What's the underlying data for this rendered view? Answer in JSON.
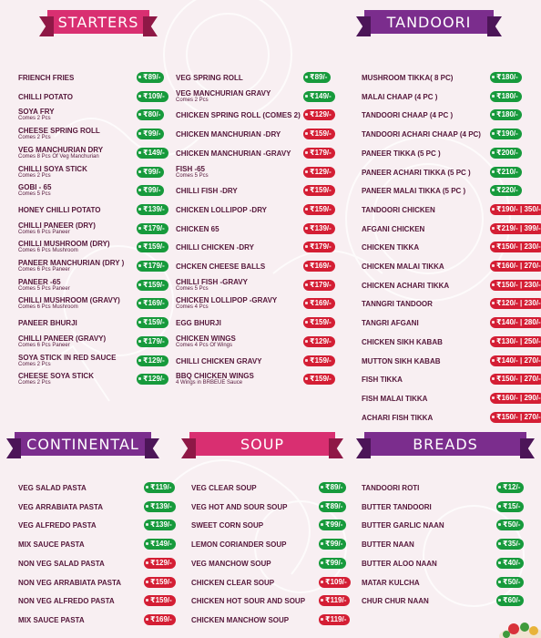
{
  "sections": {
    "starters": "STARTERS",
    "tandoori": "TANDOORI",
    "continental": "CONTINENTAL",
    "soup": "SOUP",
    "breads": "BREADS"
  },
  "colors": {
    "veg_badge": "#179a3c",
    "nonveg_badge": "#d41e34",
    "ribbon_pink": "#d92f71",
    "ribbon_purple": "#7b2d8d"
  },
  "starters_col1": [
    {
      "name": "FRIENCH FRIES",
      "price": "₹89/-",
      "type": "veg"
    },
    {
      "name": "CHILLI POTATO",
      "price": "₹109/-",
      "type": "veg"
    },
    {
      "name": "SOYA FRY",
      "sub": "Comes 2 Pcs",
      "price": "₹80/-",
      "type": "veg"
    },
    {
      "name": "CHEESE SPRING ROLL",
      "sub": "Comes 2 Pcs",
      "price": "₹99/-",
      "type": "veg"
    },
    {
      "name": "VEG MANCHURIAN DRY",
      "sub": "Comes 8 Pcs Of Veg Manchurian",
      "price": "₹149/-",
      "type": "veg"
    },
    {
      "name": "CHILLI SOYA STICK",
      "sub": "Comes 2 Pcs",
      "price": "₹99/-",
      "type": "veg"
    },
    {
      "name": "GOBI - 65",
      "sub": "Comes 5 Pcs",
      "price": "₹99/-",
      "type": "veg"
    },
    {
      "name": "HONEY CHILLI POTATO",
      "price": "₹139/-",
      "type": "veg"
    },
    {
      "name": "CHILLI PANEER (DRY)",
      "sub": "Comes 6 Pcs Paneer",
      "price": "₹179/-",
      "type": "veg"
    },
    {
      "name": "CHILLI MUSHROOM (DRY)",
      "sub": "Comes 6 Pcs Mushroom",
      "price": "₹159/-",
      "type": "veg"
    },
    {
      "name": "PANEER MANCHURIAN (DRY )",
      "sub": "Comes 6 Pcs Paneer",
      "price": "₹179/-",
      "type": "veg"
    },
    {
      "name": "PANEER -65",
      "sub": "Comes 5 Pcs Paneer",
      "price": "₹159/-",
      "type": "veg"
    },
    {
      "name": "CHILLI MUSHROOM (GRAVY)",
      "sub": "Comes 6 Pcs Mushroom",
      "price": "₹169/-",
      "type": "veg"
    },
    {
      "name": "PANEER BHURJI",
      "price": "₹159/-",
      "type": "veg"
    },
    {
      "name": "CHILLI PANEER (GRAVY)",
      "sub": "Comes 6 Pcs Paneer",
      "price": "₹179/-",
      "type": "veg"
    },
    {
      "name": "SOYA STICK IN RED SAUCE",
      "sub": "Comes 2 Pcs",
      "price": "₹129/-",
      "type": "veg"
    },
    {
      "name": "CHEESE SOYA STICK",
      "sub": "Comes 2 Pcs",
      "price": "₹129/-",
      "type": "veg"
    }
  ],
  "starters_col2": [
    {
      "name": "VEG SPRING ROLL",
      "price": "₹89/-",
      "type": "veg"
    },
    {
      "name": "VEG MANCHURIAN GRAVY",
      "sub": "Comes 2 Pcs",
      "price": "₹149/-",
      "type": "veg"
    },
    {
      "name": "CHICKEN SPRING ROLL (COMES 2)",
      "price": "₹129/-",
      "type": "nonveg"
    },
    {
      "name": "CHICKEN MANCHURIAN -DRY",
      "price": "₹159/-",
      "type": "nonveg"
    },
    {
      "name": "CHICKEN MANCHURIAN -GRAVY",
      "price": "₹179/-",
      "type": "nonveg"
    },
    {
      "name": "FISH -65",
      "sub": "Comes 5 Pcs",
      "price": "₹129/-",
      "type": "nonveg"
    },
    {
      "name": "CHILLI FISH -DRY",
      "price": "₹159/-",
      "type": "nonveg"
    },
    {
      "name": "CHICKEN LOLLIPOP -DRY",
      "price": "₹159/-",
      "type": "nonveg"
    },
    {
      "name": "CHICKEN 65",
      "price": "₹139/-",
      "type": "nonveg"
    },
    {
      "name": "CHILLI CHICKEN -DRY",
      "price": "₹179/-",
      "type": "nonveg"
    },
    {
      "name": "CHCKEN CHEESE BALLS",
      "price": "₹169/-",
      "type": "nonveg"
    },
    {
      "name": "CHILLI FISH -GRAVY",
      "sub": "Comes 5 Pcs",
      "price": "₹179/-",
      "type": "nonveg"
    },
    {
      "name": "CHICKEN LOLLIPOP -GRAVY",
      "sub": "Comes 4 Pcs",
      "price": "₹169/-",
      "type": "nonveg"
    },
    {
      "name": "EGG BHURJI",
      "price": "₹159/-",
      "type": "nonveg"
    },
    {
      "name": "CHICKEN WINGS",
      "sub": "Comes 4 Pcs Of Wings",
      "price": "₹129/-",
      "type": "nonveg"
    },
    {
      "name": "CHILLI CHICKEN GRAVY",
      "price": "₹159/-",
      "type": "nonveg"
    },
    {
      "name": "BBQ CHICKEN WINGS",
      "sub": "4 Wings in BRBEUE Sauce",
      "price": "₹159/-",
      "type": "nonveg"
    }
  ],
  "tandoori": [
    {
      "name": "MUSHROOM TIKKA( 8 PC)",
      "price": "₹180/-",
      "type": "veg"
    },
    {
      "name": "MALAI CHAAP (4 PC )",
      "price": "₹180/-",
      "type": "veg"
    },
    {
      "name": "TANDOORI CHAAP (4 PC )",
      "price": "₹180/-",
      "type": "veg"
    },
    {
      "name": "TANDOORI ACHARI CHAAP (4 PC)",
      "price": "₹190/-",
      "type": "veg"
    },
    {
      "name": "PANEER TIKKA (5 PC )",
      "price": "₹200/-",
      "type": "veg"
    },
    {
      "name": "PANEER ACHARI TIKKA  (5 PC )",
      "price": "₹210/-",
      "type": "veg"
    },
    {
      "name": "PANEER MALAI TIKKA (5 PC )",
      "price": "₹220/-",
      "type": "veg"
    },
    {
      "name": "TANDOORI CHICKEN",
      "price": "₹190/- | 350/-",
      "type": "nonveg"
    },
    {
      "name": "AFGANI CHICKEN",
      "price": "₹219/- | 399/-",
      "type": "nonveg"
    },
    {
      "name": "CHICKEN TIKKA",
      "price": "₹150/- | 230/-",
      "type": "nonveg"
    },
    {
      "name": "CHICKEN MALAI TIKKA",
      "price": "₹160/- | 270/-",
      "type": "nonveg"
    },
    {
      "name": "CHICKEN ACHARI TIKKA",
      "price": "₹150/- | 230/-",
      "type": "nonveg"
    },
    {
      "name": "TANNGRI TANDOOR",
      "price": "₹120/- | 230/-",
      "type": "nonveg"
    },
    {
      "name": "TANGRI AFGANI",
      "price": "₹140/- | 280/-",
      "type": "nonveg"
    },
    {
      "name": "CHICKEN SIKH KABAB",
      "price": "₹130/- | 250/-",
      "type": "nonveg"
    },
    {
      "name": "MUTTON SIKH KABAB",
      "price": "₹140/- | 270/-",
      "type": "nonveg"
    },
    {
      "name": "FISH TIKKA",
      "price": "₹150/- | 270/-",
      "type": "nonveg"
    },
    {
      "name": "FISH MALAI TIKKA",
      "price": "₹160/- | 290/-",
      "type": "nonveg"
    },
    {
      "name": "ACHARI FISH TIKKA",
      "price": "₹150/- | 270/-",
      "type": "nonveg"
    }
  ],
  "continental": [
    {
      "name": "VEG SALAD PASTA",
      "price": "₹119/-",
      "type": "veg"
    },
    {
      "name": "VEG ARRABIATA PASTA",
      "price": "₹139/-",
      "type": "veg"
    },
    {
      "name": "VEG ALFREDO PASTA",
      "price": "₹139/-",
      "type": "veg"
    },
    {
      "name": "MIX SAUCE PASTA",
      "price": "₹149/-",
      "type": "veg"
    },
    {
      "name": "NON VEG SALAD PASTA",
      "price": "₹129/-",
      "type": "nonveg"
    },
    {
      "name": "NON VEG ARRABIATA PASTA",
      "price": "₹159/-",
      "type": "nonveg"
    },
    {
      "name": "NON VEG ALFREDO PASTA",
      "price": "₹159/-",
      "type": "nonveg"
    },
    {
      "name": "MIX SAUCE PASTA",
      "price": "₹169/-",
      "type": "nonveg"
    }
  ],
  "soup": [
    {
      "name": "VEG CLEAR SOUP",
      "price": "₹89/-",
      "type": "veg"
    },
    {
      "name": "VEG HOT AND SOUR SOUP",
      "price": "₹89/-",
      "type": "veg"
    },
    {
      "name": "SWEET CORN SOUP",
      "price": "₹99/-",
      "type": "veg"
    },
    {
      "name": "LEMON CORIANDER SOUP",
      "price": "₹99/-",
      "type": "veg"
    },
    {
      "name": "VEG MANCHOW SOUP",
      "price": "₹99/-",
      "type": "veg"
    },
    {
      "name": "CHICKEN CLEAR SOUP",
      "price": "₹109/-",
      "type": "nonveg"
    },
    {
      "name": "CHICKEN HOT SOUR AND SOUP",
      "price": "₹119/-",
      "type": "nonveg"
    },
    {
      "name": "CHICKEN MANCHOW SOUP",
      "price": "₹119/-",
      "type": "nonveg"
    }
  ],
  "breads": [
    {
      "name": "TANDOORI ROTI",
      "price": "₹12/-",
      "type": "veg"
    },
    {
      "name": "BUTTER TANDOORI",
      "price": "₹15/-",
      "type": "veg"
    },
    {
      "name": "BUTTER GARLIC NAAN",
      "price": "₹50/-",
      "type": "veg"
    },
    {
      "name": "BUTTER NAAN",
      "price": "₹35/-",
      "type": "veg"
    },
    {
      "name": "BUTTER ALOO NAAN",
      "price": "₹40/-",
      "type": "veg"
    },
    {
      "name": "MATAR KULCHA",
      "price": "₹50/-",
      "type": "veg"
    },
    {
      "name": "CHUR CHUR NAAN",
      "price": "₹60/-",
      "type": "veg"
    }
  ]
}
